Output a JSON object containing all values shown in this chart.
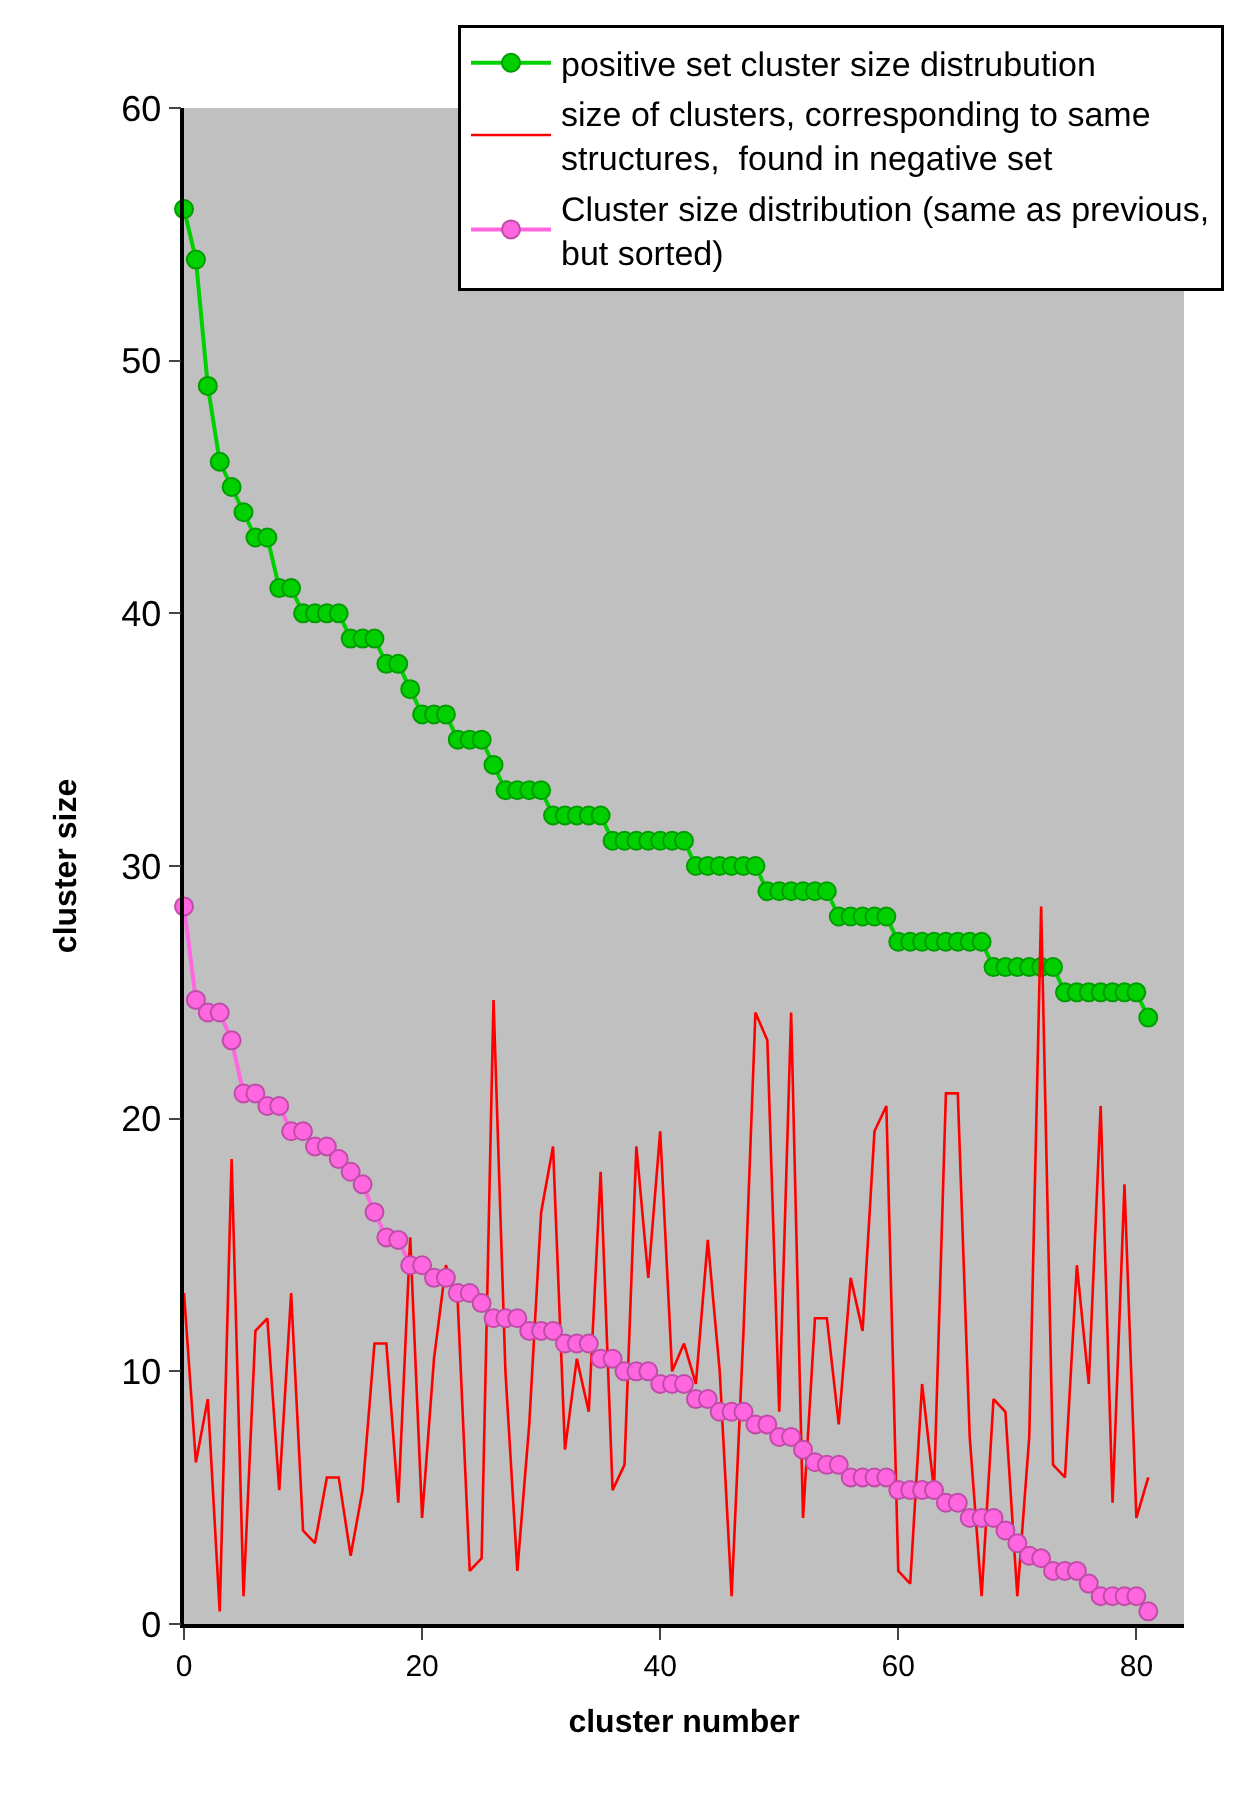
{
  "chart_data": {
    "type": "line",
    "xlabel": "cluster number",
    "ylabel": "cluster size",
    "x": [
      0,
      1,
      2,
      3,
      4,
      5,
      6,
      7,
      8,
      9,
      10,
      11,
      12,
      13,
      14,
      15,
      16,
      17,
      18,
      19,
      20,
      21,
      22,
      23,
      24,
      25,
      26,
      27,
      28,
      29,
      30,
      31,
      32,
      33,
      34,
      35,
      36,
      37,
      38,
      39,
      40,
      41,
      42,
      43,
      44,
      45,
      46,
      47,
      48,
      49,
      50,
      51,
      52,
      53,
      54,
      55,
      56,
      57,
      58,
      59,
      60,
      61,
      62,
      63,
      64,
      65,
      66,
      67,
      68,
      69,
      70,
      71,
      72,
      73,
      74,
      75,
      76,
      77,
      78,
      79,
      80,
      81
    ],
    "series": [
      {
        "name": "positive set cluster size distrubution",
        "color": "#00d000",
        "marker": "circle",
        "values": [
          56,
          54,
          49,
          46,
          45,
          44,
          43,
          43,
          41,
          41,
          40,
          40,
          40,
          40,
          39,
          39,
          39,
          38,
          38,
          37,
          36,
          36,
          36,
          35,
          35,
          35,
          34,
          33,
          33,
          33,
          33,
          32,
          32,
          32,
          32,
          32,
          31,
          31,
          31,
          31,
          31,
          31,
          31,
          30,
          30,
          30,
          30,
          30,
          30,
          29,
          29,
          29,
          29,
          29,
          29,
          28,
          28,
          28,
          28,
          28,
          27,
          27,
          27,
          27,
          27,
          27,
          27,
          27,
          26,
          26,
          26,
          26,
          26,
          26,
          25,
          25,
          25,
          25,
          25,
          25,
          25,
          24
        ]
      },
      {
        "name": "size of clusters, corresponding to same structures,  found in negative set",
        "color": "#ff0000",
        "marker": "none",
        "values": [
          13.1,
          6.4,
          8.9,
          0.5,
          18.4,
          1.1,
          11.6,
          12.1,
          5.3,
          13.1,
          3.7,
          3.2,
          5.8,
          5.8,
          2.7,
          5.3,
          11.1,
          11.1,
          4.8,
          15.3,
          4.2,
          10.5,
          14.2,
          12.7,
          2.1,
          2.6,
          24.7,
          10,
          2.1,
          7.9,
          16.3,
          18.9,
          6.9,
          10.5,
          8.4,
          17.9,
          5.3,
          6.3,
          18.9,
          13.7,
          19.5,
          10,
          11.1,
          9.5,
          15.2,
          10,
          1.1,
          11.6,
          24.2,
          23.1,
          8.4,
          24.2,
          4.2,
          12.1,
          12.1,
          7.9,
          13.7,
          11.6,
          19.5,
          20.5,
          2.1,
          1.6,
          9.5,
          5.3,
          21,
          21,
          7.4,
          1.1,
          8.9,
          8.4,
          1.1,
          7.4,
          28.4,
          6.3,
          5.8,
          14.2,
          9.5,
          20.5,
          4.8,
          17.4,
          4.2,
          5.8
        ]
      },
      {
        "name": "Cluster size distribution (same as previous, but sorted)",
        "color": "#ff66e0",
        "marker": "circle",
        "values": [
          28.4,
          24.7,
          24.2,
          24.2,
          23.1,
          21,
          21,
          20.5,
          20.5,
          19.5,
          19.5,
          18.9,
          18.9,
          18.4,
          17.9,
          17.4,
          16.3,
          15.3,
          15.2,
          14.2,
          14.2,
          13.7,
          13.7,
          13.1,
          13.1,
          12.7,
          12.1,
          12.1,
          12.1,
          11.6,
          11.6,
          11.6,
          11.1,
          11.1,
          11.1,
          10.5,
          10.5,
          10,
          10,
          10,
          9.5,
          9.5,
          9.5,
          8.9,
          8.9,
          8.4,
          8.4,
          8.4,
          7.9,
          7.9,
          7.4,
          7.4,
          6.9,
          6.4,
          6.3,
          6.3,
          5.8,
          5.8,
          5.8,
          5.8,
          5.3,
          5.3,
          5.3,
          5.3,
          4.8,
          4.8,
          4.2,
          4.2,
          4.2,
          3.7,
          3.2,
          2.7,
          2.6,
          2.1,
          2.1,
          2.1,
          1.6,
          1.1,
          1.1,
          1.1,
          1.1,
          0.5
        ]
      }
    ],
    "xlim": [
      0,
      84
    ],
    "xticks": [
      0,
      20,
      40,
      60,
      80
    ],
    "ylim": [
      0,
      60
    ],
    "yticks": [
      0,
      10,
      20,
      30,
      40,
      50,
      60
    ],
    "grid": false,
    "legend": "top right"
  }
}
